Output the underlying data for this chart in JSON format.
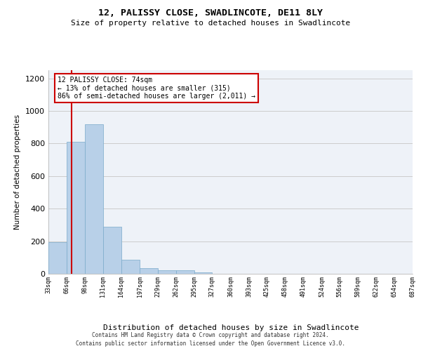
{
  "title": "12, PALISSY CLOSE, SWADLINCOTE, DE11 8LY",
  "subtitle": "Size of property relative to detached houses in Swadlincote",
  "xlabel": "Distribution of detached houses by size in Swadlincote",
  "ylabel": "Number of detached properties",
  "bar_color": "#b8d0e8",
  "bar_edge_color": "#7aaacb",
  "background_color": "#eef2f8",
  "grid_color": "#cccccc",
  "annotation_title": "12 PALISSY CLOSE: 74sqm",
  "annotation_line1": "← 13% of detached houses are smaller (315)",
  "annotation_line2": "86% of semi-detached houses are larger (2,011) →",
  "vline_color": "#cc0000",
  "vline_x": 74,
  "bin_edges": [
    33,
    66,
    98,
    131,
    164,
    197,
    229,
    262,
    295,
    327,
    360,
    393,
    425,
    458,
    491,
    524,
    556,
    589,
    622,
    654,
    687
  ],
  "bar_heights": [
    195,
    810,
    920,
    290,
    85,
    35,
    20,
    20,
    10,
    0,
    0,
    0,
    0,
    0,
    0,
    0,
    0,
    0,
    0,
    0
  ],
  "tick_labels": [
    "33sqm",
    "66sqm",
    "98sqm",
    "131sqm",
    "164sqm",
    "197sqm",
    "229sqm",
    "262sqm",
    "295sqm",
    "327sqm",
    "360sqm",
    "393sqm",
    "425sqm",
    "458sqm",
    "491sqm",
    "524sqm",
    "556sqm",
    "589sqm",
    "622sqm",
    "654sqm",
    "687sqm"
  ],
  "ylim": [
    0,
    1250
  ],
  "yticks": [
    0,
    200,
    400,
    600,
    800,
    1000,
    1200
  ],
  "footer_line1": "Contains HM Land Registry data © Crown copyright and database right 2024.",
  "footer_line2": "Contains public sector information licensed under the Open Government Licence v3.0."
}
